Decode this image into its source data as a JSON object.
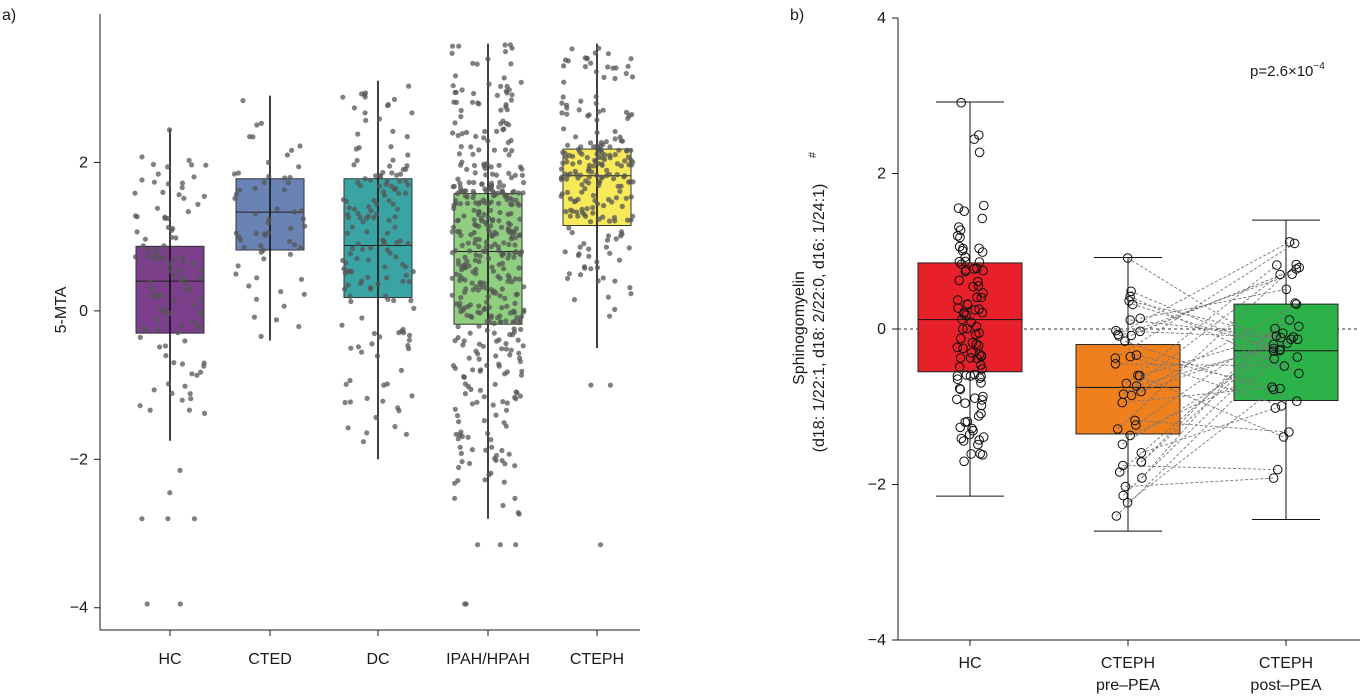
{
  "chart_data": [
    {
      "panel_label": "a)",
      "type": "box",
      "ylabel": "5-MTA",
      "xlabel": "",
      "ylim": [
        -4.3,
        4.0
      ],
      "yticks": [
        -4,
        -2,
        0,
        2
      ],
      "ytick_labels": [
        "−4",
        "−2",
        "0",
        "2"
      ],
      "categories": [
        "HC",
        "CTED",
        "DC",
        "IPAH/HPAH",
        "CTEPH"
      ],
      "colors": [
        "#7b3f8c",
        "#6a83b5",
        "#3aa4a4",
        "#8fcf7f",
        "#f6ea5a"
      ],
      "boxes": [
        {
          "q1": -0.3,
          "median": 0.4,
          "q3": 0.87,
          "whisker_low": -1.75,
          "whisker_high": 2.45
        },
        {
          "q1": 0.82,
          "median": 1.33,
          "q3": 1.78,
          "whisker_low": -0.4,
          "whisker_high": 2.9
        },
        {
          "q1": 0.18,
          "median": 0.88,
          "q3": 1.78,
          "whisker_low": -2.0,
          "whisker_high": 3.1
        },
        {
          "q1": -0.18,
          "median": 0.8,
          "q3": 1.58,
          "whisker_low": -2.8,
          "whisker_high": 3.6
        },
        {
          "q1": 1.15,
          "median": 1.82,
          "q3": 2.18,
          "whisker_low": -0.5,
          "whisker_high": 3.6
        }
      ],
      "point_counts": [
        110,
        60,
        160,
        450,
        220
      ],
      "outliers": [
        [
          -2.15,
          -2.45,
          -2.8,
          -2.8,
          -2.8,
          -3.95,
          -3.95
        ],
        [],
        [],
        [
          -3.15,
          -3.15,
          -3.15,
          -3.95,
          -3.95
        ],
        [
          -3.15,
          -1.0,
          -1.0
        ]
      ]
    },
    {
      "panel_label": "b)",
      "type": "box",
      "ylabel_lines": [
        "Sphinogomyelin",
        "(d18: 1/22:1, d18: 2/22:0, d16: 1/24:1)"
      ],
      "ylabel_superscript": "#",
      "ylim": [
        -4,
        4
      ],
      "yticks": [
        -4,
        -2,
        0,
        2,
        4
      ],
      "ytick_labels": [
        "−4",
        "−2",
        "0",
        "2",
        "4"
      ],
      "categories": [
        [
          "HC"
        ],
        [
          "CTEPH",
          "pre–PEA"
        ],
        [
          "CTEPH",
          "post–PEA"
        ]
      ],
      "colors": [
        "#e8202a",
        "#f07f1e",
        "#2bb34a"
      ],
      "boxes": [
        {
          "q1": -0.55,
          "median": 0.12,
          "q3": 0.85,
          "whisker_low": -2.15,
          "whisker_high": 2.92
        },
        {
          "q1": -1.35,
          "median": -0.75,
          "q3": -0.2,
          "whisker_low": -2.6,
          "whisker_high": 0.92
        },
        {
          "q1": -0.92,
          "median": -0.28,
          "q3": 0.32,
          "whisker_low": -2.45,
          "whisker_high": 1.4
        }
      ],
      "point_counts": [
        100,
        40,
        40
      ],
      "reference_line": 0,
      "annotation": "p=2.6×10",
      "annotation_exponent": "−4"
    }
  ]
}
